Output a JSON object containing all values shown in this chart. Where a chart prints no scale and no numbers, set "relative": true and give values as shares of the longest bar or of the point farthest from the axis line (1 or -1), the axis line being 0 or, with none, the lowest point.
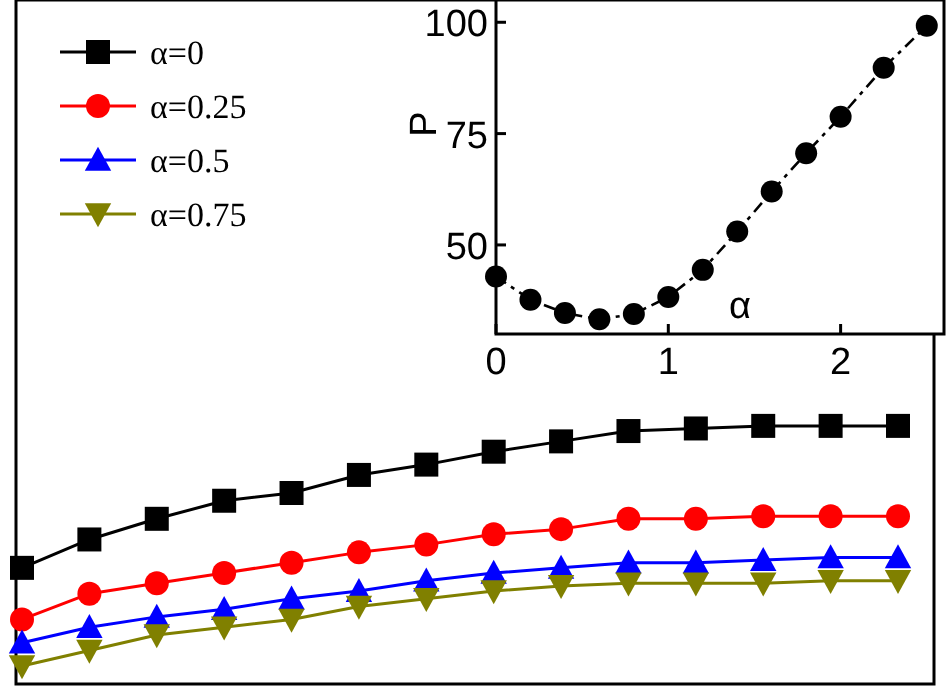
{
  "chart_data": [
    {
      "type": "line",
      "relative": true,
      "legend": "top left",
      "grid": false,
      "line_style": "solid",
      "categories": [
        null,
        null,
        null,
        null,
        null,
        null,
        null,
        null,
        null,
        null,
        null,
        null,
        null,
        null
      ],
      "series": [
        {
          "name": "α=0",
          "color": "#000000",
          "marker": "square",
          "values": [
            0.45,
            0.56,
            0.64,
            0.71,
            0.74,
            0.81,
            0.85,
            0.9,
            0.94,
            0.98,
            0.99,
            1,
            1,
            1
          ]
        },
        {
          "name": "α=0.25",
          "color": "#ff0000",
          "marker": "circle",
          "values": [
            0.25,
            0.35,
            0.39,
            0.43,
            0.47,
            0.51,
            0.54,
            0.58,
            0.6,
            0.64,
            0.64,
            0.65,
            0.65,
            0.65
          ]
        },
        {
          "name": "α=0.5",
          "color": "#0000ff",
          "marker": "triangle",
          "values": [
            0.16,
            0.22,
            0.26,
            0.29,
            0.33,
            0.36,
            0.4,
            0.43,
            0.45,
            0.47,
            0.47,
            0.48,
            0.49,
            0.49
          ]
        },
        {
          "name": "α=0.75",
          "color": "#808000",
          "marker": "triangle-down",
          "values": [
            0.07,
            0.13,
            0.19,
            0.22,
            0.25,
            0.3,
            0.33,
            0.36,
            0.38,
            0.39,
            0.39,
            0.39,
            0.4,
            0.4
          ]
        }
      ]
    },
    {
      "type": "line",
      "xlabel": "α",
      "ylabel": "P",
      "marker": "circle",
      "line_style": "dashed",
      "grid": false,
      "xlim": [
        0,
        2.6
      ],
      "xticks": [
        0,
        1,
        2
      ],
      "ylim": [
        30,
        105
      ],
      "yticks": [
        50,
        75,
        100
      ],
      "x": [
        0,
        0.2,
        0.4,
        0.6,
        0.8,
        1.0,
        1.2,
        1.4,
        1.6,
        1.8,
        2.0,
        2.25,
        2.5
      ],
      "series": [
        {
          "color": "#000000",
          "values": [
            42.9,
            37.7,
            34.7,
            33.3,
            34.5,
            38.3,
            44.4,
            53.0,
            62.0,
            70.6,
            78.8,
            89.8,
            99.2
          ]
        }
      ]
    }
  ]
}
